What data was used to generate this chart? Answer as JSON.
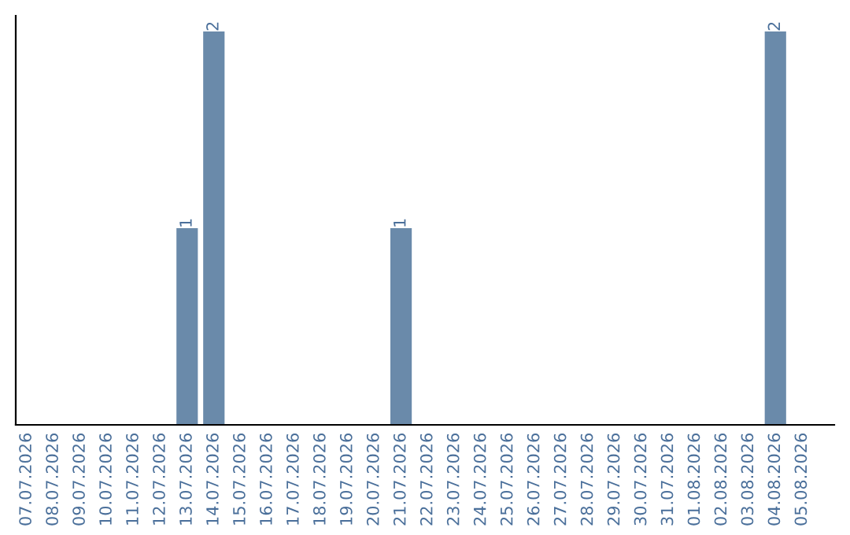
{
  "chart_data": {
    "type": "bar",
    "categories": [
      "07.07.2026",
      "08.07.2026",
      "09.07.2026",
      "10.07.2026",
      "11.07.2026",
      "12.07.2026",
      "13.07.2026",
      "14.07.2026",
      "15.07.2026",
      "16.07.2026",
      "17.07.2026",
      "18.07.2026",
      "19.07.2026",
      "20.07.2026",
      "21.07.2026",
      "22.07.2026",
      "23.07.2026",
      "24.07.2026",
      "25.07.2026",
      "26.07.2026",
      "27.07.2026",
      "28.07.2026",
      "29.07.2026",
      "30.07.2026",
      "31.07.2026",
      "01.08.2026",
      "02.08.2026",
      "03.08.2026",
      "04.08.2026",
      "05.08.2026"
    ],
    "values": [
      0,
      0,
      0,
      0,
      0,
      0,
      1,
      2,
      0,
      0,
      0,
      0,
      0,
      0,
      1,
      0,
      0,
      0,
      0,
      0,
      0,
      0,
      0,
      0,
      0,
      0,
      0,
      0,
      2,
      0
    ],
    "value_labels": [
      null,
      null,
      null,
      null,
      null,
      null,
      "1",
      "2",
      null,
      null,
      null,
      null,
      null,
      null,
      "1",
      null,
      null,
      null,
      null,
      null,
      null,
      null,
      null,
      null,
      null,
      null,
      null,
      null,
      "2",
      null
    ],
    "color": "#6a8aaa",
    "tick_labels": "x",
    "grid": false,
    "legend": false
  }
}
